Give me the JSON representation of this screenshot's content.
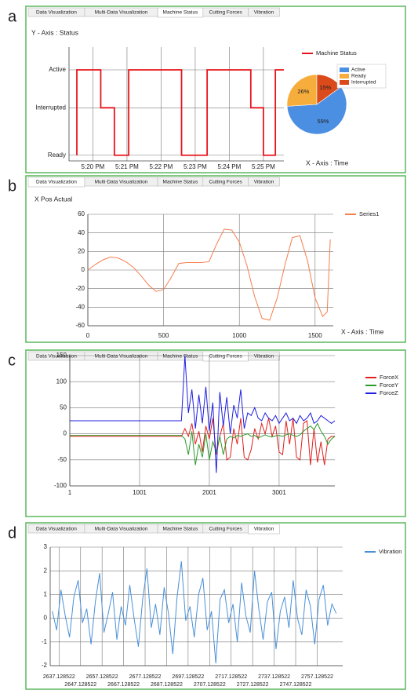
{
  "panels": [
    {
      "letter": "a",
      "tabs": [
        "Data Visualization",
        "Multi-Data Visualization",
        "Machine Status",
        "Cutting Forces",
        "Vibration"
      ],
      "active_tab": 2
    },
    {
      "letter": "b",
      "tabs": [
        "Data Visualization",
        "Multi-Data Visualization",
        "Machine Status",
        "Cutting Forces",
        "Vibration"
      ],
      "active_tab": 0
    },
    {
      "letter": "c",
      "tabs": [
        "Data Visualization",
        "Multi-Data Visualization",
        "Machine Status",
        "Cutting Forces",
        "Vibration"
      ],
      "active_tab": 3
    },
    {
      "letter": "d",
      "tabs": [
        "Data Visualization",
        "Multi-Data Visualization",
        "Machine Status",
        "Cutting Forces",
        "Vibration"
      ],
      "active_tab": 4
    }
  ],
  "chart_data": [
    {
      "type": "line",
      "title": "Y - Axis : Status",
      "x_label": "X - Axis : Time",
      "x": [
        -0.47,
        -0.47,
        0.23,
        0.23,
        0.63,
        0.63,
        1.05,
        1.05,
        2.6,
        2.6,
        3.35,
        3.35,
        4.63,
        4.63,
        5.0,
        5.0,
        5.35,
        5.35,
        5.6
      ],
      "series": [
        {
          "name": "Machine Status",
          "color": "#e8141c",
          "values": [
            0,
            4.5,
            4.5,
            2.5,
            2.5,
            0,
            0,
            4.5,
            4.5,
            0,
            0,
            4.5,
            4.5,
            2.5,
            2.5,
            0,
            0,
            4.5,
            4.5
          ]
        }
      ],
      "xlim": [
        -0.7,
        5.6
      ],
      "xticks": [
        {
          "value": 0,
          "label": "5:20 PM"
        },
        {
          "value": 1,
          "label": "5:21 PM"
        },
        {
          "value": 2,
          "label": "5:22 PM"
        },
        {
          "value": 3,
          "label": "5:23 PM"
        },
        {
          "value": 4,
          "label": "5:24 PM"
        },
        {
          "value": 5,
          "label": "5:25 PM"
        }
      ],
      "ylim": [
        -0.3,
        5.7
      ],
      "yticks": [
        {
          "value": 0,
          "label": "Ready"
        },
        {
          "value": 2.5,
          "label": "Interrupted"
        },
        {
          "value": 4.5,
          "label": "Active"
        }
      ],
      "grid": true
    },
    {
      "type": "pie",
      "categories": [
        "Active",
        "Ready",
        "Interrupted"
      ],
      "values": [
        59,
        26,
        15
      ],
      "value_labels": [
        "59%",
        "26%",
        "15%"
      ],
      "colors": [
        "#4b8fe2",
        "#f6ad3c",
        "#db4a1b"
      ]
    },
    {
      "type": "line",
      "title": "X Pos Actual",
      "x_label": "X - Axis : Time",
      "x": [
        0,
        50,
        100,
        150,
        200,
        250,
        300,
        350,
        400,
        450,
        500,
        550,
        600,
        650,
        700,
        750,
        800,
        850,
        900,
        950,
        1000,
        1050,
        1100,
        1150,
        1200,
        1250,
        1300,
        1350,
        1400,
        1450,
        1500,
        1550,
        1580,
        1600
      ],
      "series": [
        {
          "name": "Series1",
          "color": "#f47f4f",
          "values": [
            0,
            6,
            11,
            14,
            13,
            9,
            3,
            -6,
            -16,
            -23,
            -21,
            -8,
            7,
            8,
            8,
            8,
            9,
            28,
            44,
            43,
            30,
            5,
            -28,
            -52,
            -54,
            -30,
            5,
            35,
            37,
            10,
            -30,
            -50,
            -45,
            33
          ]
        }
      ],
      "xlim": [
        0,
        1620
      ],
      "xticks": [
        0,
        500,
        1000,
        1500
      ],
      "ylim": [
        -60,
        60
      ],
      "yticks": [
        -60,
        -40,
        -20,
        0,
        20,
        40,
        60
      ],
      "grid": true
    },
    {
      "type": "line",
      "x": [
        1,
        401,
        801,
        1201,
        1601,
        1651,
        1701,
        1751,
        1801,
        1851,
        1901,
        1951,
        2001,
        2051,
        2101,
        2151,
        2201,
        2251,
        2301,
        2351,
        2401,
        2451,
        2501,
        2551,
        2601,
        2651,
        2701,
        2751,
        2801,
        2851,
        2901,
        2951,
        3001,
        3051,
        3101,
        3151,
        3201,
        3251,
        3301,
        3351,
        3401,
        3451,
        3501,
        3551,
        3601,
        3651,
        3701,
        3751,
        3801
      ],
      "series": [
        {
          "name": "ForceX",
          "color": "#e0201c",
          "values": [
            -5,
            -5,
            -5,
            -5,
            -5,
            10,
            -5,
            20,
            -20,
            5,
            -35,
            15,
            -10,
            30,
            -40,
            -5,
            20,
            -50,
            -45,
            10,
            -20,
            30,
            -45,
            -50,
            -30,
            10,
            -10,
            20,
            0,
            30,
            -5,
            15,
            -35,
            -40,
            25,
            -20,
            30,
            -45,
            -50,
            20,
            25,
            -60,
            10,
            -55,
            -15,
            -60,
            -10,
            -5,
            -5
          ]
        },
        {
          "name": "ForceY",
          "color": "#2a9a2a",
          "values": [
            -3,
            -3,
            -3,
            -3,
            -3,
            -10,
            -40,
            5,
            -60,
            -20,
            -45,
            0,
            -50,
            -15,
            -35,
            -5,
            -40,
            -10,
            -5,
            -8,
            -3,
            -5,
            -2,
            0,
            -5,
            -3,
            -8,
            -5,
            -2,
            -5,
            -6,
            -4,
            -3,
            -5,
            -2,
            0,
            -3,
            -5,
            -2,
            5,
            10,
            15,
            8,
            20,
            5,
            -5,
            -20,
            -10,
            -5
          ]
        },
        {
          "name": "ForceZ",
          "color": "#1f1fe0",
          "values": [
            25,
            25,
            25,
            25,
            25,
            150,
            40,
            85,
            10,
            75,
            20,
            90,
            5,
            60,
            -75,
            80,
            15,
            70,
            0,
            55,
            30,
            85,
            10,
            40,
            35,
            50,
            30,
            25,
            40,
            30,
            25,
            35,
            20,
            30,
            40,
            25,
            30,
            20,
            35,
            25,
            30,
            40,
            20,
            25,
            35,
            30,
            25,
            20,
            25
          ]
        }
      ],
      "xlim": [
        1,
        3800
      ],
      "xticks": [
        1,
        1001,
        2001,
        3001
      ],
      "ylim": [
        -100,
        150
      ],
      "yticks": [
        -100,
        -50,
        0,
        50,
        100,
        150
      ],
      "grid": true
    },
    {
      "type": "line",
      "x": [
        2634,
        2636,
        2638,
        2640,
        2642,
        2644,
        2646,
        2648,
        2650,
        2652,
        2654,
        2656,
        2658,
        2660,
        2662,
        2664,
        2666,
        2668,
        2670,
        2672,
        2674,
        2676,
        2678,
        2680,
        2682,
        2684,
        2686,
        2688,
        2690,
        2692,
        2694,
        2696,
        2698,
        2700,
        2702,
        2704,
        2706,
        2708,
        2710,
        2712,
        2714,
        2716,
        2718,
        2720,
        2722,
        2724,
        2726,
        2728,
        2730,
        2732,
        2734,
        2736,
        2738,
        2740,
        2742,
        2744,
        2746,
        2748,
        2750,
        2752,
        2754,
        2756,
        2758,
        2760,
        2762,
        2764,
        2766
      ],
      "series": [
        {
          "name": "Vibration",
          "color": "#4a90d9",
          "values": [
            0.3,
            -0.5,
            1.2,
            0.1,
            -0.8,
            0.9,
            1.6,
            -0.2,
            0.4,
            -1.1,
            0.7,
            1.9,
            -0.6,
            0.2,
            1.1,
            -0.9,
            0.5,
            -0.3,
            1.4,
            0.0,
            -1.2,
            0.8,
            2.1,
            -0.4,
            0.6,
            -0.7,
            1.3,
            0.2,
            -1.5,
            0.9,
            2.4,
            -0.1,
            0.5,
            -0.8,
            1.0,
            1.7,
            -0.5,
            0.3,
            -1.9,
            0.8,
            1.2,
            -0.2,
            0.6,
            -1.0,
            1.5,
            0.1,
            -0.6,
            2.0,
            0.4,
            -0.9,
            0.7,
            1.1,
            -1.3,
            0.3,
            0.9,
            -0.4,
            1.6,
            0.0,
            -0.7,
            1.2,
            0.5,
            -1.1,
            0.8,
            1.4,
            -0.3,
            0.6,
            0.2
          ]
        }
      ],
      "xlim": [
        2633,
        2769
      ],
      "xticks": [
        2637.128522,
        2647.128522,
        2657.128522,
        2667.128522,
        2677.128522,
        2687.128522,
        2697.128522,
        2707.128522,
        2717.128522,
        2727.128522,
        2737.128522,
        2747.128522,
        2757.128522
      ],
      "ylim": [
        -2,
        3
      ],
      "yticks": [
        -2,
        -1,
        0,
        1,
        2,
        3
      ],
      "grid": true
    }
  ]
}
